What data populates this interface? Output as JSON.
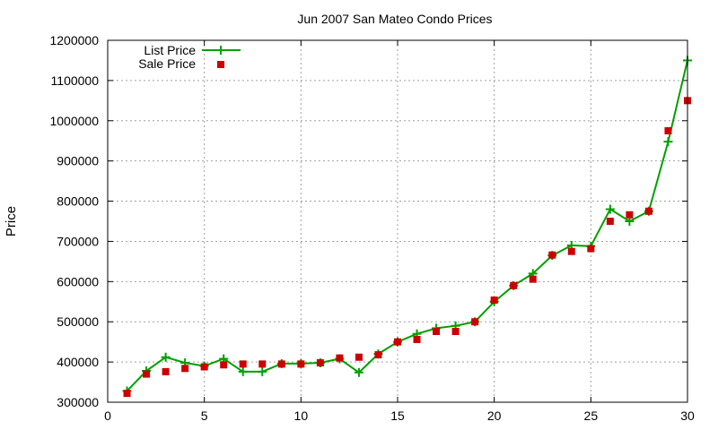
{
  "chart_data": {
    "type": "line",
    "title": "Jun 2007 San Mateo Condo Prices",
    "xlabel": "",
    "ylabel": "Price",
    "xlim": [
      0,
      30
    ],
    "ylim": [
      300000,
      1200000
    ],
    "xticks": [
      0,
      5,
      10,
      15,
      20,
      25,
      30
    ],
    "yticks": [
      300000,
      400000,
      500000,
      600000,
      700000,
      800000,
      900000,
      1000000,
      1100000,
      1200000
    ],
    "grid": true,
    "legend_position": "top-left",
    "colors": {
      "list": "#00a000",
      "sale": "#cc0000"
    },
    "series": [
      {
        "name": "List Price",
        "style": "line-plus",
        "x": [
          1,
          2,
          3,
          4,
          5,
          6,
          7,
          8,
          9,
          10,
          11,
          12,
          13,
          14,
          15,
          16,
          17,
          18,
          19,
          20,
          21,
          22,
          23,
          24,
          25,
          26,
          27,
          28,
          29,
          30
        ],
        "y": [
          328000,
          378000,
          412000,
          398000,
          390000,
          408000,
          376000,
          376000,
          396000,
          396000,
          398000,
          408000,
          374000,
          420000,
          450000,
          470000,
          484000,
          490000,
          500000,
          550000,
          590000,
          620000,
          665000,
          690000,
          688000,
          780000,
          750000,
          775000,
          948000,
          1150000
        ]
      },
      {
        "name": "Sale Price",
        "style": "square",
        "x": [
          1,
          2,
          3,
          4,
          5,
          6,
          7,
          8,
          9,
          10,
          11,
          12,
          13,
          14,
          15,
          16,
          17,
          18,
          19,
          20,
          21,
          22,
          23,
          24,
          25,
          26,
          27,
          28,
          29,
          30
        ],
        "y": [
          322000,
          370000,
          376000,
          384000,
          388000,
          393000,
          395000,
          395000,
          395000,
          395000,
          398000,
          410000,
          412000,
          418000,
          450000,
          456000,
          476000,
          476000,
          500000,
          554000,
          590000,
          606000,
          666000,
          675000,
          682000,
          750000,
          766000,
          775000,
          975000,
          1050000
        ]
      }
    ]
  }
}
